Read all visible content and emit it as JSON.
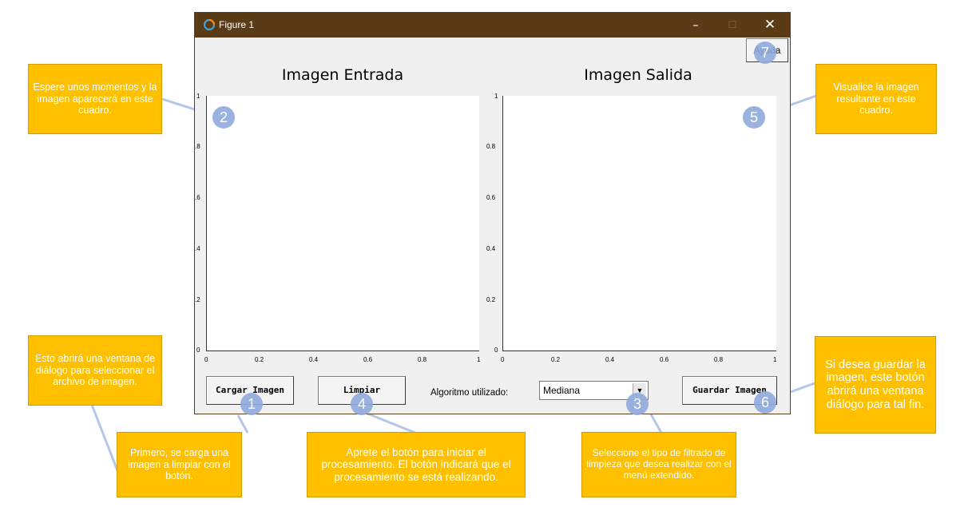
{
  "window": {
    "title": "Figure 1",
    "minimize_glyph": "–",
    "maximize_glyph": "☐",
    "close_glyph": "✕",
    "titlebar_color": "#5b3a16",
    "app_icon": "matplotlib-icon"
  },
  "buttons": {
    "ayuda": "Ayuda",
    "cargar": "Cargar Imagen",
    "limpiar": "Limpiar",
    "guardar": "Guardar Imagen"
  },
  "algorithm": {
    "label": "Algoritmo utilizado:",
    "selected": "Mediana",
    "arrow": "▼"
  },
  "axes": {
    "left_title": "Imagen Entrada",
    "right_title": "Imagen Salida",
    "left_yticks": [
      "1",
      ".8",
      ".6",
      ".4",
      ".2",
      "0"
    ],
    "right_yticks": [
      "1",
      "0.8",
      "0.6",
      "0.4",
      "0.2",
      "0"
    ],
    "xticks": [
      "0",
      "0.2",
      "0.4",
      "0.6",
      "0.8",
      "1"
    ]
  },
  "callouts": {
    "c1": "Primero, se carga una imagen a limpiar con el botón.",
    "c2": "Espere unos momentos y la imagen aparecerá en este cuadro.",
    "c3": "Seleccione el tipo de filtrado de limpieza que desea realizar con el menú extendido.",
    "c4": "Aprete el botón para iniciar el procesamiento. El botón indicará que el procesamiento se está realizando.",
    "c5": "Visualice la imagen resultante en este cuadro.",
    "c6": "Si desea guardar la imagen, este botón abrirá una ventana diálogo para tal fin.",
    "c7": "Esto abrirá una ventana de diálogo para seleccionar el archivo de imagen."
  },
  "markers": {
    "m1": "1",
    "m2": "2",
    "m3": "3",
    "m4": "4",
    "m5": "5",
    "m6": "6",
    "m7": "7"
  },
  "colors": {
    "callout": "#ffc000",
    "marker": "#8faadc"
  }
}
